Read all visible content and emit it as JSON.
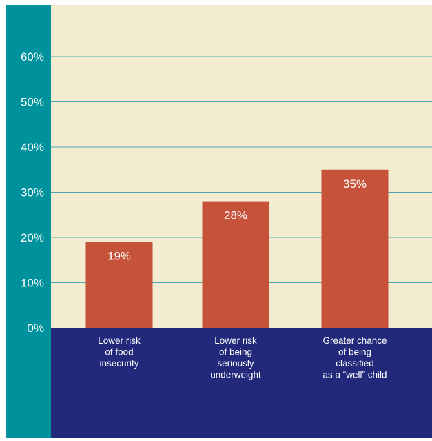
{
  "colors": {
    "left_strip": "#00929c",
    "plot_background": "#f3ecd1",
    "bottom_band": "#22287a",
    "bars": "#c6523a",
    "gridlines": "#4aa7b3",
    "text": "#ffffff"
  },
  "chart_data": {
    "type": "bar",
    "categories": [
      [
        "Lower risk",
        "of food",
        "insecurity"
      ],
      [
        "Lower risk",
        "of being",
        "seriously",
        "underweight"
      ],
      [
        "Greater chance",
        "of being",
        "classified",
        "as a “well” child"
      ]
    ],
    "values": [
      19,
      28,
      35
    ],
    "data_labels": [
      "19%",
      "28%",
      "35%"
    ],
    "yticks": [
      0,
      10,
      20,
      30,
      40,
      50,
      60
    ],
    "ytick_labels": [
      "0%",
      "10%",
      "20%",
      "30%",
      "40%",
      "50%",
      "60%"
    ],
    "ylim": [
      0,
      72
    ],
    "grid": true,
    "title": "",
    "xlabel": "",
    "ylabel": ""
  }
}
